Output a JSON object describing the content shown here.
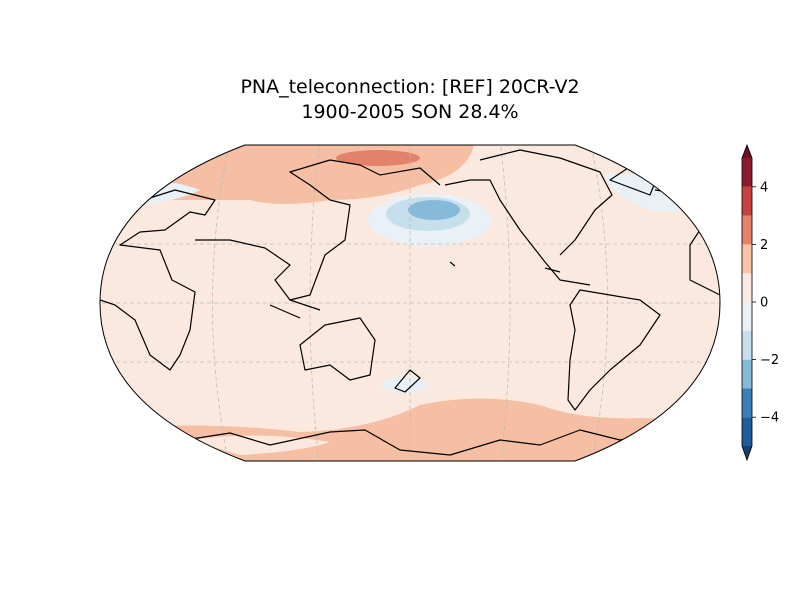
{
  "title": [
    "PNA_teleconnection: [REF] 20CR-V2",
    "1900-2005 SON 28.4%"
  ],
  "colorbar": {
    "levels": [
      -5,
      -4,
      -3,
      -2,
      -1,
      0,
      1,
      2,
      3,
      4,
      5
    ],
    "colors": [
      "#1f5c99",
      "#3b7fb8",
      "#87bad9",
      "#c6dfed",
      "#eaf1f6",
      "#fbe9df",
      "#f8c3a7",
      "#e58368",
      "#c9423f",
      "#8e1b2c"
    ],
    "under_color": "#17406f",
    "over_color": "#6e0f22",
    "ticks": [
      {
        "value": -4,
        "label": "−4"
      },
      {
        "value": -2,
        "label": "−2"
      },
      0,
      2,
      4
    ]
  }
}
